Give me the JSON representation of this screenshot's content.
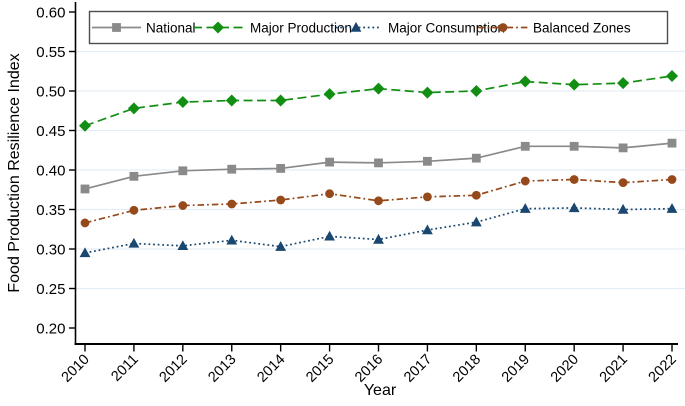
{
  "chart_data": {
    "type": "line",
    "title": "",
    "xlabel": "Year",
    "ylabel": "Food Production Resilience Index",
    "x": [
      2010,
      2011,
      2012,
      2013,
      2014,
      2015,
      2016,
      2017,
      2018,
      2019,
      2020,
      2021,
      2022
    ],
    "ylim": [
      0.2,
      0.6
    ],
    "yticks": [
      0.6,
      0.55,
      0.5,
      0.45,
      0.4,
      0.35,
      0.3,
      0.25,
      0.2
    ],
    "grid": true,
    "legend_position": "top",
    "series": [
      {
        "name": "National",
        "color": "#8a8a8a",
        "marker": "square",
        "dash": "solid",
        "values": [
          0.376,
          0.392,
          0.399,
          0.401,
          0.402,
          0.41,
          0.409,
          0.411,
          0.415,
          0.43,
          0.43,
          0.428,
          0.434
        ]
      },
      {
        "name": "Major Production",
        "color": "#128f12",
        "marker": "diamond",
        "dash": "dashed",
        "values": [
          0.456,
          0.478,
          0.486,
          0.488,
          0.488,
          0.496,
          0.503,
          0.498,
          0.5,
          0.512,
          0.508,
          0.51,
          0.519
        ]
      },
      {
        "name": "Major Consumption",
        "color": "#1a476f",
        "marker": "triangle",
        "dash": "dotted",
        "values": [
          0.295,
          0.307,
          0.304,
          0.311,
          0.303,
          0.316,
          0.312,
          0.324,
          0.334,
          0.351,
          0.352,
          0.35,
          0.351
        ]
      },
      {
        "name": "Balanced Zones",
        "color": "#96491a",
        "marker": "circle",
        "dash": "dashdot",
        "values": [
          0.333,
          0.349,
          0.355,
          0.357,
          0.362,
          0.37,
          0.361,
          0.366,
          0.368,
          0.386,
          0.388,
          0.384,
          0.388
        ]
      }
    ],
    "colors": {
      "background": "#ffffff",
      "grid": "#e3edf3",
      "axis": "#000000",
      "text": "#000000",
      "legend_border": "#4d4d4d",
      "legend_fill": "#ffffff"
    }
  }
}
